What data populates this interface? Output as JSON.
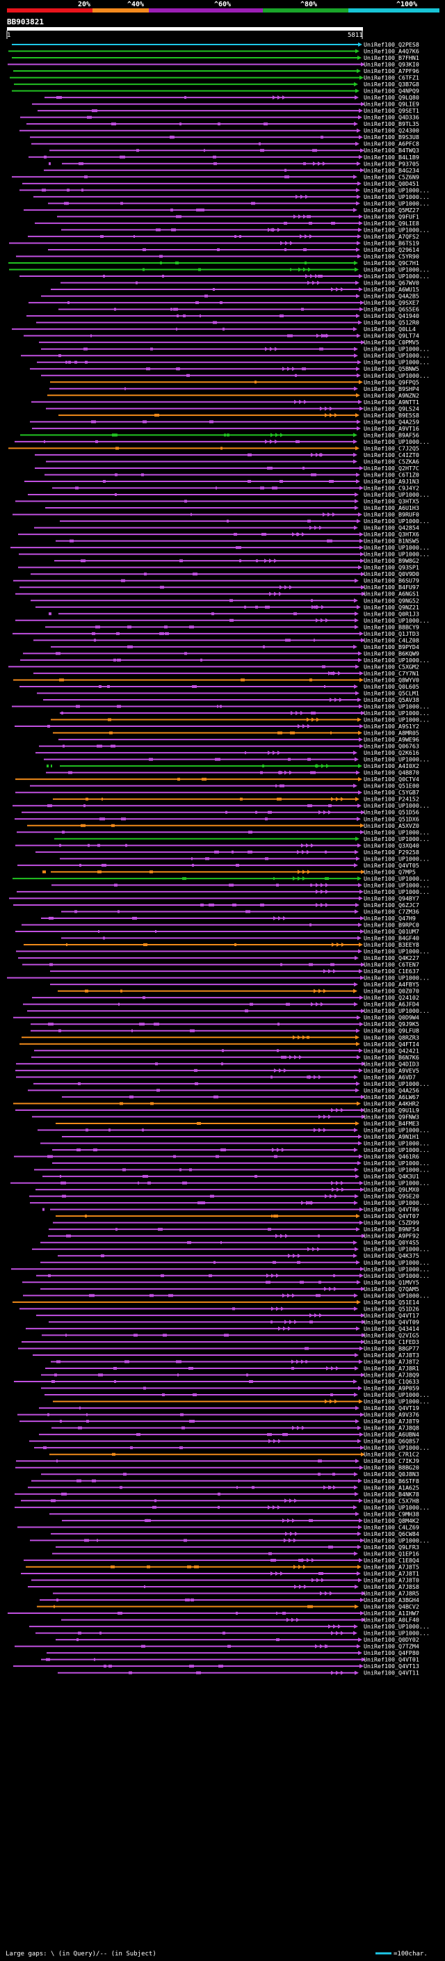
{
  "query_id": "BB903821",
  "query_start": "1",
  "query_end": "5811",
  "scale": {
    "labels": [
      "20%",
      "^40%",
      "^60%",
      "^80%",
      "^100%"
    ],
    "colors": [
      "#e8141c",
      "#f58a1e",
      "#9b1fb5",
      "#1aa52a",
      "#18c4d6"
    ]
  },
  "hit_colors": {
    "cyan": "#1ec8e8",
    "green": "#22c322",
    "purple": "#c050e0",
    "orange": "#f08a1a"
  },
  "footer": {
    "legend": "Large gaps: \\ (in Query)/-- (in Subject)",
    "scale_note": "=100char."
  },
  "hits": [
    "UniRef100_Q2PES8",
    "UniRef100_A4Q7K6",
    "UniRef100_B7FHN1",
    "UniRef100_Q93KI0",
    "UniRef100_A7PF96",
    "UniRef100_C6TFZ1",
    "UniRef100_Q3B7G8",
    "UniRef100_Q4NPQ9",
    "UniRef100_Q9LQ80",
    "UniRef100_Q9LIE9",
    "UniRef100_Q9SET1",
    "UniRef100_Q4D336",
    "UniRef100_B9TL35",
    "UniRef100_Q24300",
    "UniRef100_B9S3U8",
    "UniRef100_A6PFC8",
    "UniRef100_B4TWQ3",
    "UniRef100_B4L1B9",
    "UniRef100_P93705",
    "UniRef100_B4G234",
    "UniRef100_C5Z6N9",
    "UniRef100_Q0D451",
    "UniRef100_UP1000...",
    "UniRef100_UP1000...",
    "UniRef100_UP1000...",
    "UniRef100_Q5MZ27",
    "UniRef100_Q9FUF1",
    "UniRef100_Q9LIE8",
    "UniRef100_UP1000...",
    "UniRef100_A7QFS2",
    "UniRef100_B6TS19",
    "UniRef100_Q29614",
    "UniRef100_C5YR90",
    "UniRef100_Q9C7H1",
    "UniRef100_UP1000...",
    "UniRef100_UP1000...",
    "UniRef100_Q67WV0",
    "UniRef100_A6WU15",
    "UniRef100_Q4A2B5",
    "UniRef100_Q9SXE7",
    "UniRef100_Q6S5E6",
    "UniRef100_Q41940",
    "UniRef100_Q512R0",
    "UniRef100_Q0LL4",
    "UniRef100_Q9LT74",
    "UniRef100_C0PMV5",
    "UniRef100_UP1000...",
    "UniRef100_UP1000...",
    "UniRef100_UP1000...",
    "UniRef100_Q5BNW5",
    "UniRef100_UP1000...",
    "UniRef100_Q9FPQ5",
    "UniRef100_B9SHP4",
    "UniRef100_A9NZN2",
    "UniRef100_A9NTT1",
    "UniRef100_Q9LS24",
    "UniRef100_B9E5S8",
    "UniRef100_Q4A259",
    "UniRef100_A9VT16",
    "UniRef100_B9AF56",
    "UniRef100_UP1000...",
    "UniRef100_C7J2Q5",
    "UniRef100_C4IZT0",
    "UniRef100_C5ZKA6",
    "UniRef100_Q2HT7C",
    "UniRef100_C6T1Z0",
    "UniRef100_A9J1N3",
    "UniRef100_C9J4Y2",
    "UniRef100_UP1000...",
    "UniRef100_Q3HTX5",
    "UniRef100_A6U1H3",
    "UniRef100_B9RUF0",
    "UniRef100_UP1000...",
    "UniRef100_Q42854",
    "UniRef100_Q3HTX6",
    "UniRef100_B1NSW5",
    "UniRef100_UP1000...",
    "UniRef100_UP1000...",
    "UniRef100_B9W8G2",
    "UniRef100_Q93SP1",
    "UniRef100_Q0V9D0",
    "UniRef100_B6SU79",
    "UniRef100_B4FU97",
    "UniRef100_A6NGS1",
    "UniRef100_Q9NG52",
    "UniRef100_Q9NZ21",
    "UniRef100_Q0R1J3",
    "UniRef100_UP1000...",
    "UniRef100_B8BCY9",
    "UniRef100_Q1JTD3",
    "UniRef100_C4LZ08",
    "UniRef100_B9PYD4",
    "UniRef100_B6KQW9",
    "UniRef100_UP1000...",
    "UniRef100_C5XGM2",
    "UniRef100_C7Y7N1",
    "UniRef100_Q8WYV0",
    "UniRef100_Q0L605",
    "UniRef100_Q5CLM1",
    "UniRef100_Q5AV38",
    "UniRef100_UP1000...",
    "UniRef100_UP1000...",
    "UniRef100_UP1000...",
    "UniRef100_A9S1Y2",
    "UniRef100_A8MR05",
    "UniRef100_A9WE96",
    "UniRef100_Q06763",
    "UniRef100_Q2K616",
    "UniRef100_UP1000...",
    "UniRef100_A4I0X2",
    "UniRef100_Q4B870",
    "UniRef100_Q0CTV4",
    "UniRef100_Q51E00",
    "UniRef100_C5YGB7",
    "UniRef100_P24152",
    "UniRef100_UP1000...",
    "UniRef100_Q51D56",
    "UniRef100_Q51DX6",
    "UniRef100_A5XVZ0",
    "UniRef100_UP1000...",
    "UniRef100_UP1000...",
    "UniRef100_Q3XQ40",
    "UniRef100_P29258",
    "UniRef100_UP1000...",
    "UniRef100_Q4VT05",
    "UniRef100_Q7MP5",
    "UniRef100_UP1000...",
    "UniRef100_UP1000...",
    "UniRef100_UP1000...",
    "UniRef100_Q94BY7",
    "UniRef100_Q6ZJC7",
    "UniRef100_C7ZM36",
    "UniRef100_Q47H9",
    "UniRef100_B9RPC0",
    "UniRef100_Q01UM7",
    "UniRef100_B4GF40",
    "UniRef100_B3EEY8",
    "UniRef100_UP1000...",
    "UniRef100_Q4K227",
    "UniRef100_C6TEN7",
    "UniRef100_C1E637",
    "UniRef100_UP1000...",
    "UniRef100_A4FBY5",
    "UniRef100_Q0Z070",
    "UniRef100_Q24102",
    "UniRef100_A6JFD4",
    "UniRef100_UP1000...",
    "UniRef100_Q0D9W4",
    "UniRef100_Q9J9K5",
    "UniRef100_Q9LFU8",
    "UniRef100_Q8RZR3",
    "UniRef100_Q4FTI4",
    "UniRef100_Q42421",
    "UniRef100_B6N7K6",
    "UniRef100_Q4DID3",
    "UniRef100_A9VEV5",
    "UniRef100_A6VD7",
    "UniRef100_UP1000...",
    "UniRef100_Q4A256",
    "UniRef100_A6LW67",
    "UniRef100_A4KHR2",
    "UniRef100_Q9U1L9",
    "UniRef100_Q9FNW3",
    "UniRef100_B4FME3",
    "UniRef100_UP1000...",
    "UniRef100_A9N1H1",
    "UniRef100_UP1000...",
    "UniRef100_UP1000...",
    "UniRef100_Q461R6",
    "UniRef100_UP1000...",
    "UniRef100_UP1000...",
    "UniRef100_Q4K3U1",
    "UniRef100_UP1000...",
    "UniRef100_Q9LMX0",
    "UniRef100_Q9SE20",
    "UniRef100_UP1000...",
    "UniRef100_Q4VT06",
    "UniRef100_Q4VT07",
    "UniRef100_C5ZD99",
    "UniRef100_B9NF54",
    "UniRef100_A9PF92",
    "UniRef100_Q0Y4S5",
    "UniRef100_UP1000...",
    "UniRef100_Q4K375",
    "UniRef100_UP1000...",
    "UniRef100_UP1000...",
    "UniRef100_UP1000...",
    "UniRef100_Q1MVY5",
    "UniRef100_Q7QAM5",
    "UniRef100_UP1000...",
    "UniRef100_Q51E14",
    "UniRef100_Q51D26",
    "UniRef100_Q4VT17",
    "UniRef100_Q4VT09",
    "UniRef100_Q43414",
    "UniRef100_Q2VIG5",
    "UniRef100_C1FED3",
    "UniRef100_B8GP77",
    "UniRef100_A7J8T3",
    "UniRef100_A7J8T2",
    "UniRef100_A7J8R1",
    "UniRef100_A7J8Q9",
    "UniRef100_C1Q633",
    "UniRef100_A9P059",
    "UniRef100_UP1000...",
    "UniRef100_UP1000...",
    "UniRef100_Q4VT19",
    "UniRef100_A9V376",
    "UniRef100_A7J8T9",
    "UniRef100_A7J8Q8",
    "UniRef100_A6UBN4",
    "UniRef100_Q6Q8S7",
    "UniRef100_UP1000...",
    "UniRef100_C7R1C2",
    "UniRef100_C7IKJ9",
    "UniRef100_B8BG20",
    "UniRef100_Q0J8N3",
    "UniRef100_B6STF8",
    "UniRef100_A1A625",
    "UniRef100_B4NK78",
    "UniRef100_C5X7H8",
    "UniRef100_UP1000...",
    "UniRef100_C9MH38",
    "UniRef100_Q8M4K2",
    "UniRef100_C4LZ69",
    "UniRef100_Q6CW84",
    "UniRef100_UP1000...",
    "UniRef100_Q9LFR3",
    "UniRef100_Q1EP16",
    "UniRef100_C1E8Q4",
    "UniRef100_A7J8T5",
    "UniRef100_A7J8T1",
    "UniRef100_A7J8T0",
    "UniRef100_A7J8S8",
    "UniRef100_A7J8R5",
    "UniRef100_A3BGH4",
    "UniRef100_Q4BCV2",
    "UniRef100_A1IHW7",
    "UniRef100_A0LF40",
    "UniRef100_UP1000...",
    "UniRef100_UP1000...",
    "UniRef100_Q0DY02",
    "UniRef100_Q7TZM4",
    "UniRef100_Q4FP80",
    "UniRef100_Q4VT01",
    "UniRef100_Q4VT13",
    "UniRef100_Q4VT11"
  ]
}
